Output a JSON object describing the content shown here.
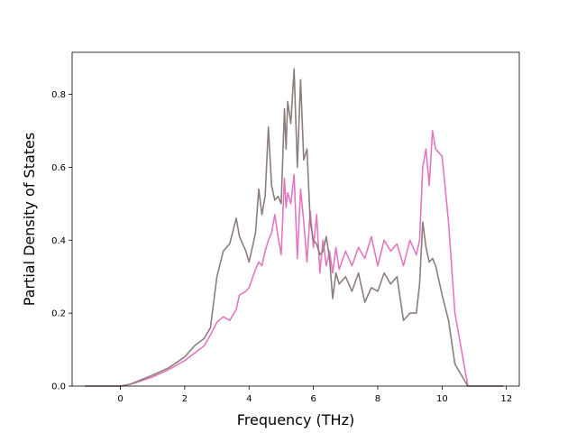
{
  "chart_data": {
    "type": "line",
    "xlabel": "Frequency (THz)",
    "ylabel": "Partial Density of States",
    "xlim": [
      -1.5,
      12.4
    ],
    "ylim": [
      0.0,
      0.915
    ],
    "xticks": [
      0,
      2,
      4,
      6,
      8,
      10,
      12
    ],
    "yticks": [
      0.0,
      0.2,
      0.4,
      0.6,
      0.8
    ],
    "xtick_labels": [
      "0",
      "2",
      "4",
      "6",
      "8",
      "10",
      "12"
    ],
    "ytick_labels": [
      "0.0",
      "0.2",
      "0.4",
      "0.6",
      "0.8"
    ],
    "grid": false,
    "legend": "none",
    "series": [
      {
        "color": "#e377c2",
        "x": [
          -1.1,
          0.0,
          0.3,
          0.5,
          1.0,
          1.5,
          2.0,
          2.3,
          2.6,
          2.8,
          3.0,
          3.2,
          3.4,
          3.6,
          3.7,
          3.9,
          4.0,
          4.2,
          4.3,
          4.4,
          4.5,
          4.6,
          4.7,
          4.8,
          4.9,
          5.0,
          5.1,
          5.15,
          5.2,
          5.3,
          5.4,
          5.5,
          5.6,
          5.7,
          5.8,
          5.9,
          6.0,
          6.1,
          6.2,
          6.3,
          6.4,
          6.5,
          6.6,
          6.7,
          6.8,
          7.0,
          7.2,
          7.4,
          7.6,
          7.8,
          8.0,
          8.2,
          8.4,
          8.6,
          8.8,
          9.0,
          9.2,
          9.3,
          9.4,
          9.5,
          9.6,
          9.7,
          9.8,
          10.0,
          10.2,
          10.4,
          10.6,
          10.8,
          11.0,
          11.9
        ],
        "y": [
          0.0,
          0.0,
          0.005,
          0.01,
          0.025,
          0.045,
          0.07,
          0.09,
          0.11,
          0.14,
          0.175,
          0.19,
          0.18,
          0.21,
          0.25,
          0.26,
          0.27,
          0.32,
          0.34,
          0.33,
          0.37,
          0.4,
          0.42,
          0.47,
          0.41,
          0.36,
          0.57,
          0.49,
          0.53,
          0.5,
          0.58,
          0.35,
          0.54,
          0.45,
          0.34,
          0.48,
          0.38,
          0.47,
          0.31,
          0.4,
          0.33,
          0.37,
          0.31,
          0.38,
          0.32,
          0.37,
          0.33,
          0.38,
          0.35,
          0.41,
          0.33,
          0.4,
          0.37,
          0.39,
          0.33,
          0.4,
          0.36,
          0.4,
          0.6,
          0.65,
          0.55,
          0.7,
          0.65,
          0.63,
          0.45,
          0.2,
          0.1,
          0.0,
          0.0,
          0.0
        ]
      },
      {
        "color": "#8c7f7b",
        "x": [
          -1.1,
          0.0,
          0.3,
          0.5,
          1.0,
          1.5,
          2.0,
          2.3,
          2.6,
          2.8,
          3.0,
          3.2,
          3.4,
          3.6,
          3.7,
          3.9,
          4.0,
          4.2,
          4.3,
          4.4,
          4.5,
          4.6,
          4.7,
          4.8,
          4.9,
          5.0,
          5.1,
          5.15,
          5.2,
          5.3,
          5.4,
          5.5,
          5.6,
          5.7,
          5.8,
          5.9,
          6.0,
          6.1,
          6.2,
          6.3,
          6.4,
          6.5,
          6.6,
          6.7,
          6.8,
          7.0,
          7.2,
          7.4,
          7.6,
          7.8,
          8.0,
          8.2,
          8.4,
          8.6,
          8.8,
          9.0,
          9.2,
          9.3,
          9.4,
          9.5,
          9.6,
          9.7,
          9.8,
          10.0,
          10.2,
          10.4,
          10.6,
          10.8,
          11.0,
          11.9
        ],
        "y": [
          0.0,
          0.0,
          0.005,
          0.012,
          0.03,
          0.05,
          0.08,
          0.11,
          0.13,
          0.16,
          0.3,
          0.37,
          0.39,
          0.46,
          0.41,
          0.37,
          0.34,
          0.42,
          0.54,
          0.47,
          0.52,
          0.71,
          0.55,
          0.51,
          0.52,
          0.5,
          0.76,
          0.65,
          0.78,
          0.72,
          0.87,
          0.6,
          0.84,
          0.62,
          0.65,
          0.45,
          0.4,
          0.39,
          0.36,
          0.37,
          0.41,
          0.35,
          0.24,
          0.31,
          0.28,
          0.3,
          0.26,
          0.31,
          0.23,
          0.27,
          0.26,
          0.31,
          0.28,
          0.3,
          0.18,
          0.2,
          0.2,
          0.28,
          0.45,
          0.38,
          0.34,
          0.35,
          0.33,
          0.25,
          0.18,
          0.06,
          0.03,
          0.0,
          0.0,
          0.0
        ]
      }
    ]
  }
}
